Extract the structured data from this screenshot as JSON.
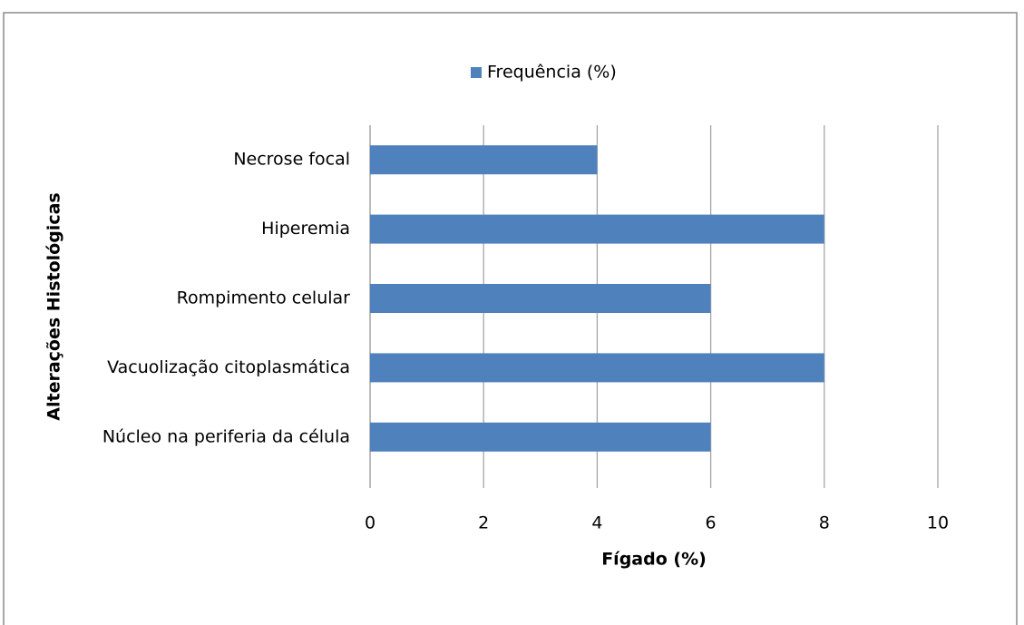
{
  "chart_data": {
    "type": "bar",
    "orientation": "horizontal",
    "categories": [
      "Necrose focal",
      "Hiperemia",
      "Rompimento celular",
      "Vacuolização citoplasmática",
      "Núcleo na periferia da célula"
    ],
    "series": [
      {
        "name": "Frequência (%)",
        "color": "#4f81bd",
        "values": [
          4,
          8,
          6,
          8,
          6
        ]
      }
    ],
    "xlabel": "Fígado (%)",
    "ylabel": "Alterações Histológicas",
    "xlim": [
      0,
      10
    ],
    "xticks": [
      0,
      2,
      4,
      6,
      8,
      10
    ],
    "grid": true,
    "legend": "top"
  }
}
